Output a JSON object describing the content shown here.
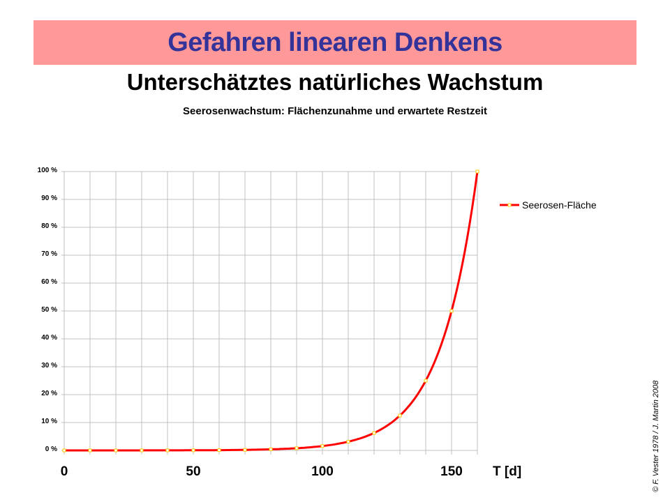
{
  "slide": {
    "banner_title": "Gefahren linearen Denkens",
    "subtitle": "Unterschätztes natürliches Wachstum",
    "copyright": "© F. Vester 1978 / J. Martin 2008",
    "colors": {
      "banner_bg": "#ff9999",
      "banner_text": "#333399",
      "line": "#ff0000",
      "marker": "#ffcc00",
      "grid": "#c0c0c0"
    }
  },
  "chart_data": {
    "type": "line",
    "title": "Seerosenwachstum:  Flächenzunahme und erwartete Restzeit",
    "xlabel": "T [d]",
    "ylabel": "",
    "x_tick_labels": [
      "0",
      "50",
      "100",
      "150"
    ],
    "y_tick_labels": [
      "0 %",
      "10 %",
      "20 %",
      "30 %",
      "40 %",
      "50 %",
      "60 %",
      "70 %",
      "80 %",
      "90 %",
      "100 %"
    ],
    "xlim": [
      0,
      160
    ],
    "ylim": [
      0,
      100
    ],
    "grid": true,
    "legend_position": "right",
    "series": [
      {
        "name": "Seerosen-Fläche",
        "x": [
          0,
          10,
          20,
          30,
          40,
          50,
          60,
          70,
          80,
          90,
          100,
          110,
          120,
          130,
          140,
          150,
          160
        ],
        "values": [
          0.0015,
          0.0031,
          0.0061,
          0.0122,
          0.0244,
          0.0488,
          0.0977,
          0.1953,
          0.3906,
          0.7813,
          1.5625,
          3.125,
          6.25,
          12.5,
          25,
          50,
          100
        ]
      }
    ]
  }
}
